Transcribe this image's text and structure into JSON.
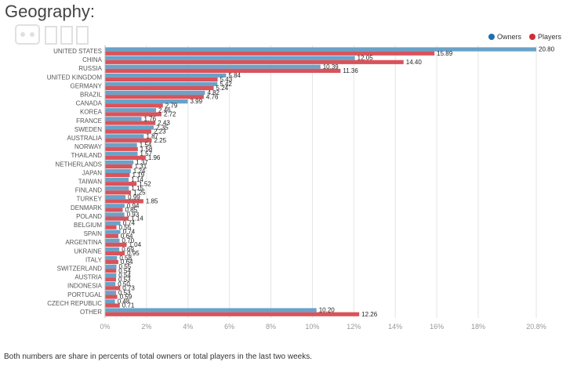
{
  "page": {
    "title": "Geography:",
    "footnote": "Both numbers are share in percents of total owners or total players in the last two weeks."
  },
  "colors": {
    "owners": "#6aa2c8",
    "players": "#d9535a",
    "grid": "#e4e4e4",
    "axis": "#999999"
  },
  "chart_data": {
    "type": "bar",
    "orientation": "horizontal",
    "title": "",
    "xlabel": "",
    "ylabel": "",
    "xlim": [
      0,
      20.8
    ],
    "x_ticks": [
      "0%",
      "2%",
      "4%",
      "6%",
      "8%",
      "10%",
      "12%",
      "14%",
      "16%",
      "18%",
      "20.8%"
    ],
    "legend_position": "top-right",
    "grid": true,
    "categories": [
      "UNITED STATES",
      "CHINA",
      "RUSSIA",
      "UNITED KINGDOM",
      "GERMANY",
      "BRAZIL",
      "CANADA",
      "KOREA",
      "FRANCE",
      "SWEDEN",
      "AUSTRALIA",
      "NORWAY",
      "THAILAND",
      "NETHERLANDS",
      "JAPAN",
      "TAIWAN",
      "FINLAND",
      "TURKEY",
      "DENMARK",
      "POLAND",
      "BELGIUM",
      "SPAIN",
      "ARGENTINA",
      "UKRAINE",
      "ITALY",
      "SWITZERLAND",
      "AUSTRIA",
      "INDONESIA",
      "PORTUGAL",
      "CZECH REPUBLIC",
      "OTHER"
    ],
    "series": [
      {
        "name": "Owners",
        "values": [
          20.8,
          12.05,
          10.39,
          5.84,
          5.42,
          4.82,
          3.99,
          2.46,
          1.76,
          2.35,
          1.87,
          1.54,
          1.57,
          1.37,
          1.24,
          1.14,
          1.15,
          0.99,
          0.94,
          0.93,
          0.74,
          0.74,
          0.7,
          0.69,
          0.58,
          0.55,
          0.54,
          0.5,
          0.53,
          0.48,
          10.2
        ]
      },
      {
        "name": "Players",
        "values": [
          15.89,
          14.4,
          11.36,
          5.43,
          5.24,
          4.76,
          2.79,
          2.72,
          2.43,
          2.23,
          2.25,
          1.58,
          1.96,
          1.31,
          1.19,
          1.52,
          1.25,
          1.85,
          0.85,
          1.14,
          0.55,
          0.64,
          1.04,
          0.95,
          0.64,
          0.54,
          0.53,
          0.73,
          0.59,
          0.71,
          12.26
        ]
      }
    ]
  }
}
